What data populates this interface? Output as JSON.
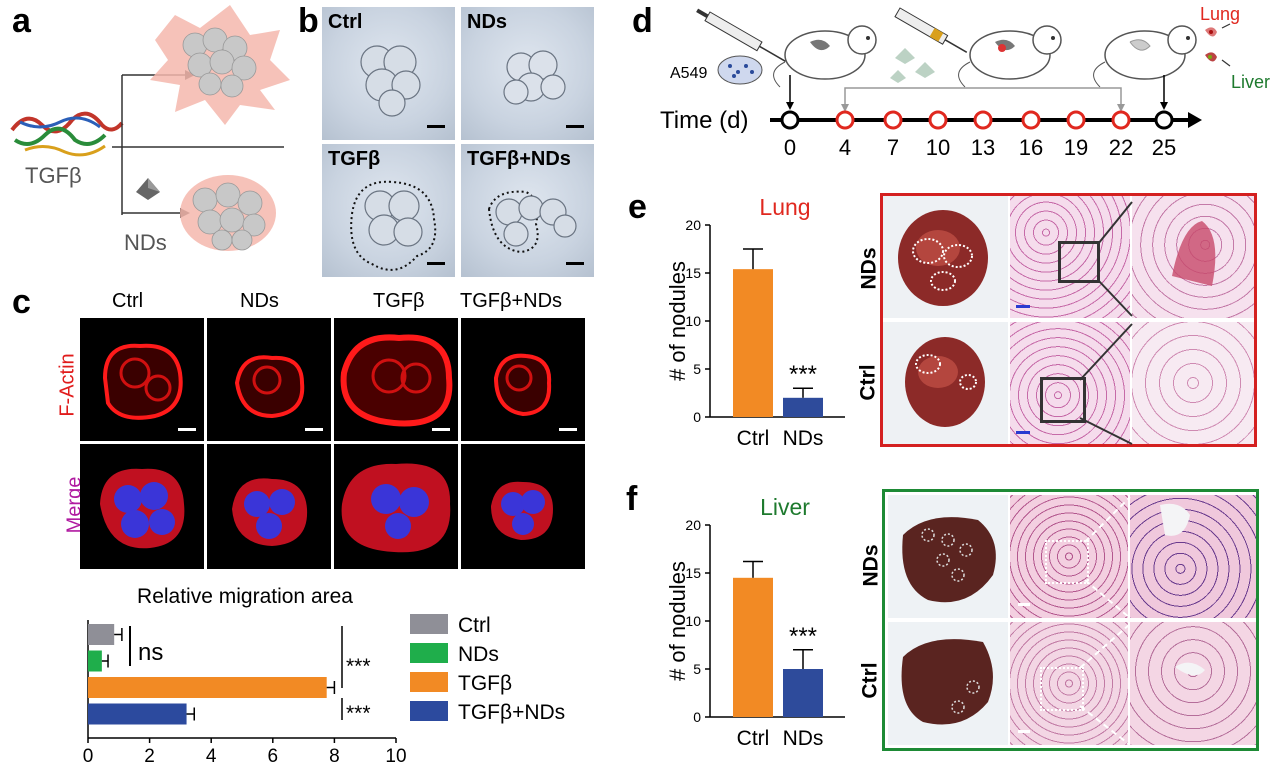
{
  "panels": {
    "a": {
      "label": "a",
      "tgf": "TGFβ",
      "nds": "NDs"
    },
    "b": {
      "label": "b",
      "cells": [
        "Ctrl",
        "NDs",
        "TGFβ",
        "TGFβ+NDs"
      ]
    },
    "c": {
      "label": "c",
      "cols": [
        "Ctrl",
        "NDs",
        "TGFβ",
        "TGFβ+NDs"
      ],
      "rows": [
        "F-Actin",
        "Merge"
      ]
    },
    "d": {
      "label": "d",
      "a549": "A549",
      "time_label": "Time (d)",
      "lung": "Lung",
      "liver": "Liver"
    },
    "e": {
      "label": "e",
      "organ": "Lung",
      "row_labels": [
        "NDs",
        "Ctrl"
      ]
    },
    "f": {
      "label": "f",
      "organ": "Liver",
      "row_labels": [
        "NDs",
        "Ctrl"
      ]
    }
  },
  "colors": {
    "ctrl": "#8f8f97",
    "nds_green": "#1fae4b",
    "tgf_orange": "#f28a24",
    "tgfnds_blue": "#2c4a9e",
    "bar_orange": "#f28a24",
    "bar_blue": "#2e4b9b",
    "lung_red": "#e0281f",
    "liver_green": "#1e7a2e"
  },
  "chart_data": [
    {
      "type": "bar",
      "title": "Relative migration area",
      "orientation": "horizontal",
      "categories": [
        "Ctrl",
        "NDs",
        "TGFβ",
        "TGFβ+NDs"
      ],
      "values": [
        0.85,
        0.45,
        7.75,
        3.2
      ],
      "errors": [
        0.25,
        0.2,
        0.25,
        0.25
      ],
      "xlim": [
        0,
        10
      ],
      "xticks": [
        "0",
        "2",
        "4",
        "6",
        "8",
        "10"
      ],
      "annotations": [
        "ns",
        "***",
        "***"
      ],
      "legend": [
        "Ctrl",
        "NDs",
        "TGFβ",
        "TGFβ+NDs"
      ]
    },
    {
      "type": "bar",
      "title": "Lung",
      "ylabel": "# of nodules",
      "categories": [
        "Ctrl",
        "NDs"
      ],
      "values": [
        15.4,
        2.0
      ],
      "errors": [
        2.1,
        1.0
      ],
      "ylim": [
        0,
        20
      ],
      "yticks": [
        "0",
        "5",
        "10",
        "15",
        "20"
      ],
      "annotation": "***"
    },
    {
      "type": "bar",
      "title": "Liver",
      "ylabel": "# of nodules",
      "categories": [
        "Ctrl",
        "NDs"
      ],
      "values": [
        14.5,
        5.0
      ],
      "errors": [
        1.7,
        2.0
      ],
      "ylim": [
        0,
        20
      ],
      "yticks": [
        "0",
        "5",
        "10",
        "15",
        "20"
      ],
      "annotation": "***"
    },
    {
      "type": "line",
      "title": "timeline",
      "xlabel": "Time (d)",
      "x": [
        0,
        4,
        7,
        10,
        13,
        16,
        19,
        22,
        25
      ],
      "x_labels": [
        "0",
        "4",
        "7",
        "10",
        "13",
        "16",
        "19",
        "22",
        "25"
      ]
    }
  ]
}
